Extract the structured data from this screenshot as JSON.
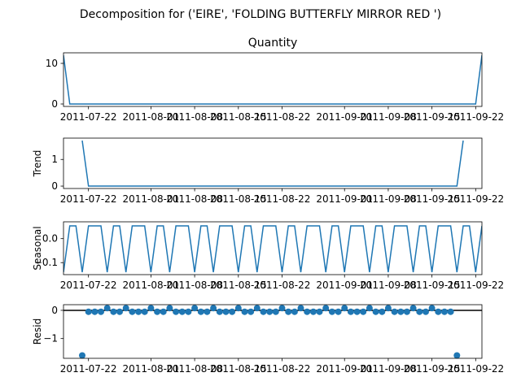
{
  "figure": {
    "suptitle": "Decomposition for ('EIRE', 'FOLDING BUTTERFLY MIRROR RED  ')"
  },
  "x_tick_labels": [
    "2011-07-22",
    "2011-08-01",
    "2011-08-08",
    "2011-08-15",
    "2011-08-22",
    "2011-09-01",
    "2011-09-08",
    "2011-09-15",
    "2011-09-22"
  ],
  "chart_data": [
    {
      "type": "line",
      "title": "Quantity",
      "ylabel": "",
      "x_start": "2011-07-18",
      "x_end": "2011-09-23",
      "xlim": [
        "2011-07-18",
        "2011-09-23"
      ],
      "ylim": [
        -0.6,
        12.6
      ],
      "yticks": [
        0,
        10
      ],
      "color": "#1f77b4",
      "points": [
        [
          "2011-07-18",
          12
        ],
        [
          "2011-07-19",
          0
        ],
        [
          "2011-09-22",
          0
        ],
        [
          "2011-09-23",
          12
        ]
      ]
    },
    {
      "type": "line",
      "title": "",
      "ylabel": "Trend",
      "xlim": [
        "2011-07-18",
        "2011-09-23"
      ],
      "ylim": [
        -0.09,
        1.8
      ],
      "yticks": [
        0,
        1
      ],
      "color": "#1f77b4",
      "points": [
        [
          "2011-07-21",
          1.71
        ],
        [
          "2011-07-22",
          0
        ],
        [
          "2011-09-19",
          0
        ],
        [
          "2011-09-20",
          1.71
        ]
      ]
    },
    {
      "type": "line",
      "title": "",
      "ylabel": "Seasonal",
      "xlim": [
        "2011-07-18",
        "2011-09-23"
      ],
      "ylim": [
        -0.15,
        0.07
      ],
      "yticks": [
        -0.1,
        0.0
      ],
      "ytick_labels": [
        "−0.1",
        "0.0"
      ],
      "color": "#1f77b4",
      "period": 7,
      "pattern": [
        -0.14,
        0.053,
        0.053,
        -0.14,
        0.053,
        0.053,
        0.053
      ],
      "pattern_start": "2011-07-18"
    },
    {
      "type": "scatter",
      "title": "",
      "ylabel": "Resid",
      "xlim": [
        "2011-07-18",
        "2011-09-23"
      ],
      "ylim": [
        -1.7,
        0.2
      ],
      "yticks": [
        -1,
        0
      ],
      "ytick_labels": [
        "−1",
        "0"
      ],
      "color": "#1f77b4",
      "baseline": 0,
      "points": [
        [
          "2011-07-21",
          -1.6
        ],
        [
          "2011-07-22",
          -0.05
        ],
        [
          "2011-07-23",
          -0.05
        ],
        [
          "2011-07-24",
          -0.05
        ],
        [
          "2011-07-25",
          0.08
        ],
        [
          "2011-07-26",
          -0.05
        ],
        [
          "2011-07-27",
          -0.05
        ],
        [
          "2011-07-28",
          0.08
        ],
        [
          "2011-07-29",
          -0.05
        ],
        [
          "2011-07-30",
          -0.05
        ],
        [
          "2011-07-31",
          -0.05
        ],
        [
          "2011-08-01",
          0.08
        ],
        [
          "2011-08-02",
          -0.05
        ],
        [
          "2011-08-03",
          -0.05
        ],
        [
          "2011-08-04",
          0.08
        ],
        [
          "2011-08-05",
          -0.05
        ],
        [
          "2011-08-06",
          -0.05
        ],
        [
          "2011-08-07",
          -0.05
        ],
        [
          "2011-08-08",
          0.08
        ],
        [
          "2011-08-09",
          -0.05
        ],
        [
          "2011-08-10",
          -0.05
        ],
        [
          "2011-08-11",
          0.08
        ],
        [
          "2011-08-12",
          -0.05
        ],
        [
          "2011-08-13",
          -0.05
        ],
        [
          "2011-08-14",
          -0.05
        ],
        [
          "2011-08-15",
          0.08
        ],
        [
          "2011-08-16",
          -0.05
        ],
        [
          "2011-08-17",
          -0.05
        ],
        [
          "2011-08-18",
          0.08
        ],
        [
          "2011-08-19",
          -0.05
        ],
        [
          "2011-08-20",
          -0.05
        ],
        [
          "2011-08-21",
          -0.05
        ],
        [
          "2011-08-22",
          0.08
        ],
        [
          "2011-08-23",
          -0.05
        ],
        [
          "2011-08-24",
          -0.05
        ],
        [
          "2011-08-25",
          0.08
        ],
        [
          "2011-08-26",
          -0.05
        ],
        [
          "2011-08-27",
          -0.05
        ],
        [
          "2011-08-28",
          -0.05
        ],
        [
          "2011-08-29",
          0.08
        ],
        [
          "2011-08-30",
          -0.05
        ],
        [
          "2011-08-31",
          -0.05
        ],
        [
          "2011-09-01",
          0.08
        ],
        [
          "2011-09-02",
          -0.05
        ],
        [
          "2011-09-03",
          -0.05
        ],
        [
          "2011-09-04",
          -0.05
        ],
        [
          "2011-09-05",
          0.08
        ],
        [
          "2011-09-06",
          -0.05
        ],
        [
          "2011-09-07",
          -0.05
        ],
        [
          "2011-09-08",
          0.08
        ],
        [
          "2011-09-09",
          -0.05
        ],
        [
          "2011-09-10",
          -0.05
        ],
        [
          "2011-09-11",
          -0.05
        ],
        [
          "2011-09-12",
          0.08
        ],
        [
          "2011-09-13",
          -0.05
        ],
        [
          "2011-09-14",
          -0.05
        ],
        [
          "2011-09-15",
          0.08
        ],
        [
          "2011-09-16",
          -0.05
        ],
        [
          "2011-09-17",
          -0.05
        ],
        [
          "2011-09-18",
          -0.05
        ],
        [
          "2011-09-19",
          -1.6
        ]
      ]
    }
  ]
}
